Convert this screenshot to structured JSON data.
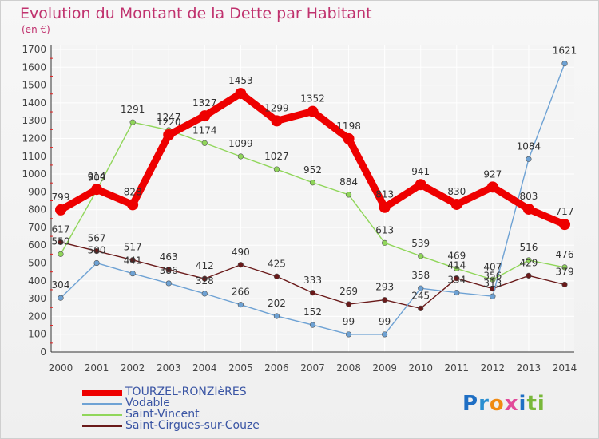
{
  "header": {
    "title": "Evolution du Montant de la Dette par Habitant",
    "unit": "(en €)"
  },
  "chart_data": {
    "type": "line",
    "title": "Evolution du Montant de la Dette par Habitant",
    "subtitle": "(en €)",
    "x": [
      "2000",
      "2001",
      "2002",
      "2003",
      "2004",
      "2005",
      "2006",
      "2007",
      "2008",
      "2009",
      "2010",
      "2011",
      "2012",
      "2013",
      "2014"
    ],
    "ylim": [
      0,
      1700
    ],
    "yticks": [
      0,
      100,
      200,
      300,
      400,
      500,
      600,
      700,
      800,
      900,
      1000,
      1100,
      1200,
      1300,
      1400,
      1500,
      1600,
      1700
    ],
    "grid": true,
    "legend_position": "bottom-left",
    "series": [
      {
        "name": "TOURZEL-RONZIèRES",
        "color": "#ee0000",
        "values": [
          799,
          914,
          828,
          1220,
          1327,
          1453,
          1299,
          1352,
          1198,
          813,
          941,
          830,
          927,
          803,
          717
        ]
      },
      {
        "name": "Vodable",
        "color": "#6ea2d4",
        "values": [
          304,
          500,
          441,
          386,
          328,
          266,
          202,
          152,
          99,
          99,
          358,
          334,
          313,
          1084,
          1621
        ]
      },
      {
        "name": "Saint-Vincent",
        "color": "#90d65a",
        "values": [
          550,
          909,
          1291,
          1247,
          1174,
          1099,
          1027,
          952,
          884,
          613,
          539,
          469,
          407,
          516,
          476
        ]
      },
      {
        "name": "Saint-Cirgues-sur-Couze",
        "color": "#6a1a1a",
        "values": [
          617,
          567,
          517,
          463,
          412,
          490,
          425,
          333,
          269,
          293,
          245,
          414,
          356,
          429,
          379
        ]
      }
    ]
  },
  "logo": {
    "text": "Proxiti"
  }
}
